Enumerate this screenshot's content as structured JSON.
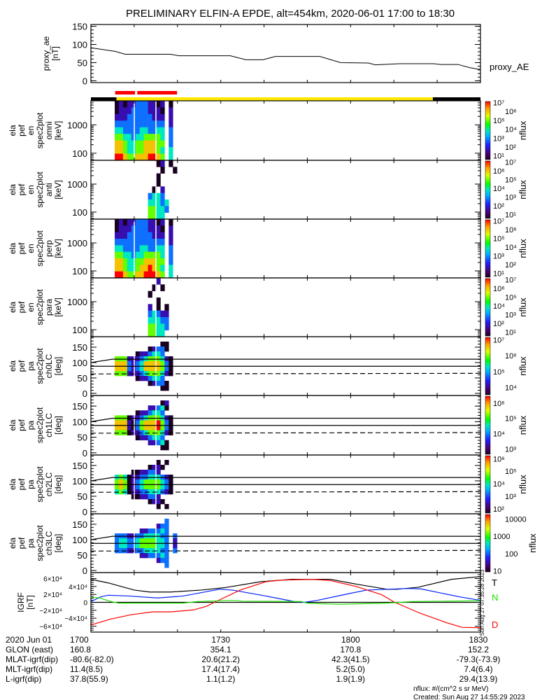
{
  "title": "PRELIMINARY ELFIN-A EPDE, alt=454km, 2020-06-01 17:00 to 18:30",
  "xaxis": {
    "range_minutes": [
      0,
      90
    ],
    "major_tick_every_minutes": 10
  },
  "igrf_timestamp": "Sun Aug 27 07:35:28 2023",
  "colors": {
    "red_bar": "#ff0000",
    "sunlit": "#ffe800",
    "dark": "#000000",
    "T": "#000000",
    "N": "#0020ff",
    "N_alt": "#20e000",
    "D": "#ff0000"
  },
  "chart_data": [
    {
      "id": "proxy_ae",
      "type": "line",
      "ylabel_lines": [
        "proxy_ae",
        "[nT]"
      ],
      "ylim": [
        -5,
        155
      ],
      "yticks": [
        0,
        50,
        100,
        150
      ],
      "ytick_labels": [
        "0",
        "50",
        "100",
        "150"
      ],
      "legend": "proxy_AE",
      "x_minutes": [
        0,
        5.6,
        7.9,
        18.3,
        20.3,
        32.2,
        35.8,
        39.8,
        42.6,
        52.9,
        57.7,
        64.1,
        65.7,
        71.3,
        79.2,
        80.8,
        84.8,
        87.6,
        90
      ],
      "values": [
        91,
        81,
        73,
        73,
        69,
        69,
        58,
        58,
        67,
        67,
        50,
        49,
        44,
        47,
        47,
        45,
        45,
        36,
        31
      ]
    },
    {
      "id": "status_strip",
      "type": "timeline",
      "red_segments": [
        [
          5.6,
          10.2
        ],
        [
          10.7,
          19.9
        ]
      ],
      "state_segments": [
        {
          "start": 0,
          "end": 5.9,
          "state": "dark"
        },
        {
          "start": 5.9,
          "end": 79.0,
          "state": "sunlit"
        },
        {
          "start": 79.0,
          "end": 90,
          "state": "dark"
        }
      ]
    },
    {
      "id": "omni",
      "type": "heatmap",
      "ylabel_lines": [
        "ela",
        "pef",
        "en",
        "spec2plot",
        "omni",
        "[keV]"
      ],
      "yscale": "log",
      "ylim_log10": [
        1.75,
        3.85
      ],
      "yticks": [
        100,
        1000
      ],
      "ytick_labels": [
        "100",
        "1000"
      ],
      "t_range_minutes": [
        5.5,
        19.9
      ],
      "rows_top_to_bottom": [
        "121223332212.1.",
        "122233332221.2.",
        "222333333222.2.",
        "333333333333.2.",
        "443333443344.3.",
        "554434455554.3.",
        "665445566655.3.",
        "665445566654.4.",
        "776556667765.4."
      ],
      "colorbar": {
        "label": "nflux",
        "zlim_log10": [
          0.5,
          7.2
        ],
        "tick_values_log10": [
          7,
          6,
          5,
          4,
          3,
          2,
          1
        ],
        "tick_labels": [
          "10⁷",
          "10⁶",
          "10⁵",
          "10⁴",
          "10³",
          "10²",
          "10¹"
        ]
      }
    },
    {
      "id": "anti",
      "type": "heatmap",
      "ylabel_lines": [
        "ela",
        "pef",
        "en",
        "spec2plot",
        "anti",
        "[keV]"
      ],
      "yscale": "log",
      "ylim_log10": [
        1.75,
        3.85
      ],
      "yticks": [
        100,
        1000
      ],
      "ytick_labels": [
        "100",
        "1000"
      ],
      "t_range_minutes": [
        5.5,
        19.9
      ],
      "rows_top_to_bottom": [
        "..........12.1.",
        "...........1..1",
        "..........1....",
        "..........1....",
        ".........1.2...",
        "........3443...",
        "........44434..",
        "........55443..",
        "........5544..."
      ],
      "colorbar": {
        "label": "nflux",
        "zlim_log10": [
          0.5,
          7.2
        ],
        "tick_values_log10": [
          7,
          6,
          5,
          4,
          3,
          2,
          1
        ],
        "tick_labels": [
          "10⁷",
          "10⁶",
          "10⁵",
          "10⁴",
          "10³",
          "10²",
          "10¹"
        ]
      }
    },
    {
      "id": "perp",
      "type": "heatmap",
      "ylabel_lines": [
        "ela",
        "pef",
        "en",
        "spec2plot",
        "perp",
        "[keV]"
      ],
      "yscale": "log",
      "ylim_log10": [
        1.75,
        3.85
      ],
      "yticks": [
        100,
        1000
      ],
      "ytick_labels": [
        "100",
        "1000"
      ],
      "t_range_minutes": [
        5.5,
        19.9
      ],
      "rows_top_to_bottom": [
        "121223332212.1.",
        "122233332221.2.",
        "222333333222.2.",
        "333333333333.2.",
        "443333443344.3.",
        "554434455554.3.",
        "665445566655.3.",
        "665445667654.4.",
        "776556677765.4."
      ],
      "colorbar": {
        "label": "nflux",
        "zlim_log10": [
          0.5,
          7.2
        ],
        "tick_values_log10": [
          7,
          6,
          5,
          4,
          3,
          2,
          1
        ],
        "tick_labels": [
          "10⁷",
          "10⁶",
          "10⁵",
          "10⁴",
          "10³",
          "10²",
          "10¹"
        ]
      }
    },
    {
      "id": "para",
      "type": "heatmap",
      "ylabel_lines": [
        "ela",
        "pef",
        "en",
        "spec2plot",
        "para",
        "[keV]"
      ],
      "yscale": "log",
      "ylim_log10": [
        1.75,
        3.85
      ],
      "yticks": [
        100,
        1000
      ],
      "ytick_labels": [
        "100",
        "1000"
      ],
      "t_range_minutes": [
        5.5,
        19.9
      ],
      "rows_top_to_bottom": [
        "..........2....",
        ".........1.1...",
        "........1......",
        "..........1....",
        "........2.1.1..",
        "........34322..",
        "........44433..",
        "........55443..",
        "........5544..."
      ],
      "colorbar": {
        "label": "nflux",
        "zlim_log10": [
          0.5,
          7.2
        ],
        "tick_values_log10": [
          7,
          6,
          5,
          4,
          3,
          2,
          1
        ],
        "tick_labels": [
          "10⁷",
          "10⁶",
          "10⁵",
          "10⁴",
          "10³",
          "10²",
          "10¹"
        ]
      }
    },
    {
      "id": "ch0LC",
      "type": "heatmap",
      "ylabel_lines": [
        "ela",
        "pef",
        "pa",
        "spec2plot",
        "ch0LC",
        "[deg]"
      ],
      "yscale": "linear",
      "ylim": [
        -7,
        184
      ],
      "yticks": [
        0,
        50,
        100,
        150
      ],
      "ytick_labels": [
        "0",
        "50",
        "100",
        "150"
      ],
      "t_range_minutes": [
        5.5,
        19.9
      ],
      "rows_top_to_bottom": [
        "...............",
        "...........11..",
        "........12331..",
        ".....1223443...",
        "55522234555421.",
        "66632346666531.",
        "66632346666531.",
        "55522234555421.",
        ".....1223443...",
        "........12331..",
        "...........11..",
        "..............."
      ],
      "loss_cone_lines": [
        {
          "x_minutes": [
            0,
            5,
            90
          ],
          "values": [
            100,
            111,
            111
          ],
          "style": "solid"
        },
        {
          "x_minutes": [
            0,
            90
          ],
          "values": [
            88,
            88
          ],
          "style": "solid"
        },
        {
          "x_minutes": [
            0,
            90
          ],
          "values": [
            63,
            65
          ],
          "style": "dashed"
        }
      ],
      "colorbar": {
        "label": "nflux",
        "zlim_log10": [
          3.5,
          7.2
        ],
        "tick_values_log10": [
          7,
          6,
          5,
          4
        ],
        "tick_labels": [
          "10⁷",
          "10⁶",
          "10⁵",
          "10⁴"
        ]
      }
    },
    {
      "id": "ch1LC",
      "type": "heatmap",
      "ylabel_lines": [
        "ela",
        "pef",
        "pa",
        "spec2plot",
        "ch1LC",
        "[deg]"
      ],
      "yscale": "linear",
      "ylim": [
        -7,
        184
      ],
      "yticks": [
        0,
        50,
        100,
        150
      ],
      "ytick_labels": [
        "0",
        "50",
        "100",
        "150"
      ],
      "t_range_minutes": [
        5.5,
        19.9
      ],
      "rows_top_to_bottom": [
        "...............",
        "...........12..",
        "........22341..",
        ".....1223443...",
        "55512234555421.",
        "66621356667531.",
        "66621356667531.",
        "55512234555421.",
        ".....1223443...",
        "........22341..",
        "...........11..",
        "..............."
      ],
      "loss_cone_lines": [
        {
          "x_minutes": [
            0,
            5,
            90
          ],
          "values": [
            100,
            111,
            111
          ],
          "style": "solid"
        },
        {
          "x_minutes": [
            0,
            90
          ],
          "values": [
            88,
            88
          ],
          "style": "solid"
        },
        {
          "x_minutes": [
            0,
            90
          ],
          "values": [
            63,
            65
          ],
          "style": "dashed"
        }
      ],
      "colorbar": {
        "label": "nflux",
        "zlim_log10": [
          2.6,
          6.5
        ],
        "tick_values_log10": [
          6,
          5,
          4,
          3
        ],
        "tick_labels": [
          "10⁶",
          "10⁵",
          "10⁴",
          "10³"
        ]
      }
    },
    {
      "id": "ch2LC",
      "type": "heatmap",
      "ylabel_lines": [
        "ela",
        "pef",
        "pa",
        "spec2plot",
        "ch2LC",
        "[deg]"
      ],
      "yscale": "linear",
      "ylim": [
        -7,
        184
      ],
      "yticks": [
        0,
        50,
        100,
        150
      ],
      "ytick_labels": [
        "0",
        "50",
        "100",
        "150"
      ],
      "t_range_minutes": [
        5.5,
        19.9
      ],
      "rows_top_to_bottom": [
        "...............",
        "..........1.1..",
        "........1221...",
        "....1122332....",
        "45412233444321.",
        "56512345555431.",
        "56512345555431.",
        "45412233444321.",
        "....1122332....",
        "........1221...",
        "..........1.1..",
        "..............."
      ],
      "loss_cone_lines": [
        {
          "x_minutes": [
            0,
            5,
            90
          ],
          "values": [
            100,
            111,
            111
          ],
          "style": "solid"
        },
        {
          "x_minutes": [
            0,
            90
          ],
          "values": [
            88,
            88
          ],
          "style": "solid"
        },
        {
          "x_minutes": [
            0,
            90
          ],
          "values": [
            63,
            65
          ],
          "style": "dashed"
        }
      ],
      "colorbar": {
        "label": "nflux",
        "zlim_log10": [
          1.6,
          6.3
        ],
        "tick_values_log10": [
          6,
          5,
          4,
          3,
          2
        ],
        "tick_labels": [
          "10⁶",
          "10⁵",
          "10⁴",
          "10³",
          "10²"
        ]
      }
    },
    {
      "id": "ch3LC",
      "type": "heatmap",
      "ylabel_lines": [
        "ela",
        "pef",
        "pa",
        "spec2plot",
        "ch3LC",
        "[deg]"
      ],
      "yscale": "linear",
      "ylim": [
        -7,
        184
      ],
      "yticks": [
        0,
        50,
        100,
        150
      ],
      "ytick_labels": [
        "0",
        "50",
        "100",
        "150"
      ],
      "t_range_minutes": [
        5.5,
        19.9
      ],
      "rows_top_to_bottom": [
        "...............",
        "............3..",
        "..........233..",
        "......2233343..",
        "3332233444433.3",
        "3443345555443.2",
        "3443345555443.2",
        "3332233444433.3",
        "......2233343..",
        "..........233..",
        "............3..",
        "..............."
      ],
      "loss_cone_lines": [
        {
          "x_minutes": [
            0,
            5,
            90
          ],
          "values": [
            100,
            111,
            111
          ],
          "style": "solid"
        },
        {
          "x_minutes": [
            0,
            90
          ],
          "values": [
            88,
            88
          ],
          "style": "solid"
        },
        {
          "x_minutes": [
            0,
            90
          ],
          "values": [
            63,
            65
          ],
          "style": "dashed"
        }
      ],
      "colorbar": {
        "label": "nflux",
        "zlim_log10": [
          0.9,
          4.3
        ],
        "tick_values_log10": [
          4,
          3,
          2,
          1
        ],
        "tick_labels": [
          "10000",
          "1000",
          "100",
          "10"
        ]
      }
    },
    {
      "id": "igrf",
      "type": "line",
      "ylabel_lines": [
        "IGRF",
        "[nT]"
      ],
      "ylim": [
        -75000,
        75000
      ],
      "yticks": [
        60000,
        40000,
        20000,
        0,
        -20000,
        -40000,
        -60000
      ],
      "ytick_labels": [
        "6×10⁴",
        "4×10⁴",
        "2×10⁴",
        "0",
        "−2×10⁴",
        "−4×10⁴",
        "−6×10⁴"
      ],
      "series": [
        {
          "name": "T",
          "color": "#000000",
          "x_minutes": [
            0,
            4,
            10,
            13.6,
            18.4,
            25.5,
            30.9,
            39.2,
            46.4,
            55.3,
            61.3,
            68.4,
            70.8,
            75.6,
            83.3,
            90
          ],
          "values": [
            58000,
            49000,
            31000,
            26000,
            26000,
            31000,
            37000,
            52000,
            58000,
            58000,
            46000,
            33000,
            33000,
            38000,
            58000,
            65000
          ]
        },
        {
          "name": "N",
          "color": "#0020ff",
          "x_minutes": [
            0,
            2.3,
            4,
            8.8,
            15.4,
            21.3,
            29.7,
            32.7,
            40.4,
            47,
            49.3,
            52.3,
            58.3,
            63.7,
            73.2,
            76.2,
            85.1,
            90
          ],
          "values": [
            2000,
            14000,
            18000,
            16000,
            11000,
            16000,
            33000,
            31000,
            16000,
            2000,
            0,
            5000,
            19000,
            31000,
            35000,
            34000,
            14000,
            5000
          ]
        },
        {
          "name": "D",
          "color": "#ff0000",
          "x_minutes": [
            0,
            4.6,
            9.4,
            14.2,
            18.4,
            23.7,
            26.7,
            28.5,
            34.5,
            40.4,
            44,
            51.1,
            55.3,
            61.3,
            67.2,
            70.2,
            76.2,
            82.1,
            85.7,
            90
          ],
          "values": [
            -57000,
            -42000,
            -31000,
            -24000,
            -24000,
            -19000,
            -10000,
            0,
            31000,
            52000,
            56000,
            58000,
            55000,
            40000,
            19000,
            0,
            -28000,
            -51000,
            -63000,
            -64000
          ]
        },
        {
          "name": "N_alt",
          "color": "#20e000",
          "x_minutes": [
            0,
            1.7,
            4.6,
            6.4,
            21.3,
            24.6,
            32.7,
            35,
            48.7,
            50,
            57.2,
            68.4,
            74.4,
            90
          ],
          "values": [
            12000,
            12000,
            2000,
            -2000,
            -2000,
            2000,
            5000,
            3000,
            2000,
            -2000,
            -5000,
            -2000,
            2000,
            4000
          ]
        }
      ],
      "legend_labels": [
        {
          "text": "T",
          "color": "#000000"
        },
        {
          "text": "N",
          "color": "#20e000"
        },
        {
          "text": "D",
          "color": "#ff0000"
        }
      ]
    }
  ],
  "footer": {
    "rows": [
      {
        "label": "2020 Jun 01",
        "values": [
          "1700",
          "1730",
          "1800",
          "1830"
        ]
      },
      {
        "label": "GLON (east)",
        "values": [
          "160.8",
          "354.1",
          "170.8",
          "152.2"
        ]
      },
      {
        "label": "MLAT-igrf(dip)",
        "values": [
          "-80.6(-82.0)",
          "20.6(21.2)",
          "42.3(41.5)",
          "-79.3(-73.9)"
        ]
      },
      {
        "label": "MLT-igrf(dip)",
        "values": [
          "11.4(8.5)",
          "17.4(17.4)",
          "5.2(5.0)",
          "7.4(6.4)"
        ]
      },
      {
        "label": "L-igrf(dip)",
        "values": [
          "37.8(55.9)",
          "1.1(1.2)",
          "1.9(1.9)",
          "29.4(13.9)"
        ]
      }
    ],
    "units": "nflux: #/(cm^2 s sr MeV)",
    "created": "Created: Sun Aug 27 14:55:29 2023"
  }
}
